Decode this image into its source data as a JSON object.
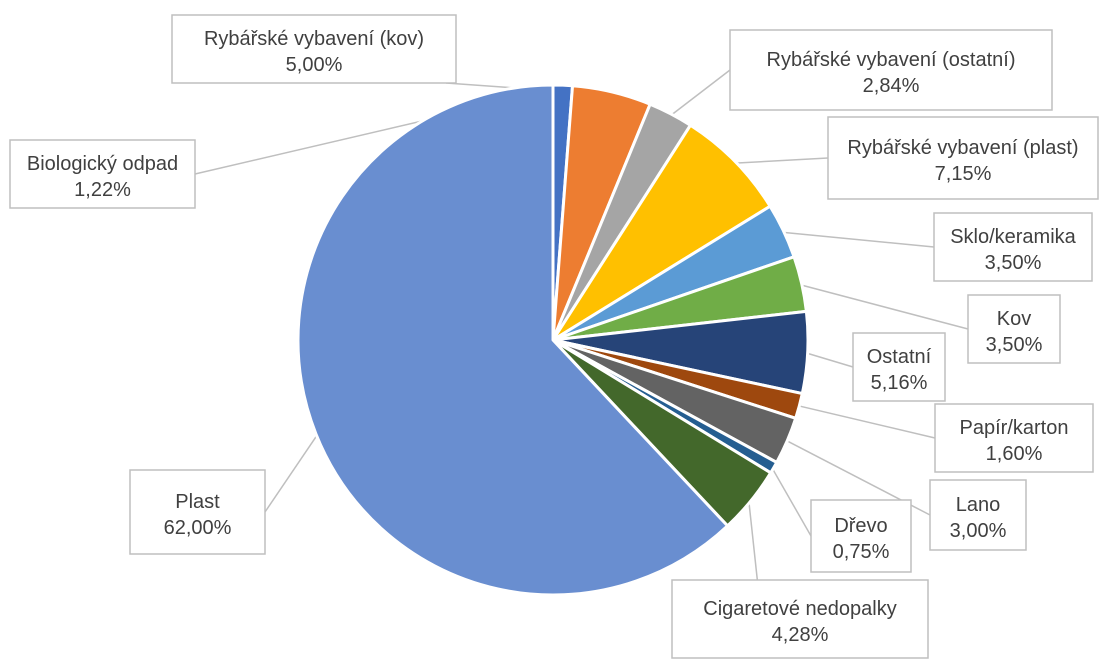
{
  "chart_data": {
    "type": "pie",
    "title": "",
    "slices": [
      {
        "label": "Biologický odpad",
        "value": 1.22,
        "text": "1,22%",
        "color": "#4472C4"
      },
      {
        "label": "Rybářské vybavení (kov)",
        "value": 5.0,
        "text": "5,00%",
        "color": "#ED7D31"
      },
      {
        "label": "Rybářské vybavení (ostatní)",
        "value": 2.84,
        "text": "2,84%",
        "color": "#A5A5A5"
      },
      {
        "label": "Rybářské vybavení (plast)",
        "value": 7.15,
        "text": "7,15%",
        "color": "#FFC000"
      },
      {
        "label": "Sklo/keramika",
        "value": 3.5,
        "text": "3,50%",
        "color": "#5B9BD5"
      },
      {
        "label": "Kov",
        "value": 3.5,
        "text": "3,50%",
        "color": "#70AD47"
      },
      {
        "label": "Ostatní",
        "value": 5.16,
        "text": "5,16%",
        "color": "#264478"
      },
      {
        "label": "Papír/karton",
        "value": 1.6,
        "text": "1,60%",
        "color": "#9E480E"
      },
      {
        "label": "Lano",
        "value": 3.0,
        "text": "3,00%",
        "color": "#636363"
      },
      {
        "label": "Dřevo",
        "value": 0.75,
        "text": "0,75%",
        "color": "#255E91"
      },
      {
        "label": "Cigaretové nedopalky",
        "value": 4.28,
        "text": "4,28%",
        "color": "#43682B"
      },
      {
        "label": "Plast",
        "value": 62.0,
        "text": "62,00%",
        "color": "#698ED0"
      }
    ]
  }
}
